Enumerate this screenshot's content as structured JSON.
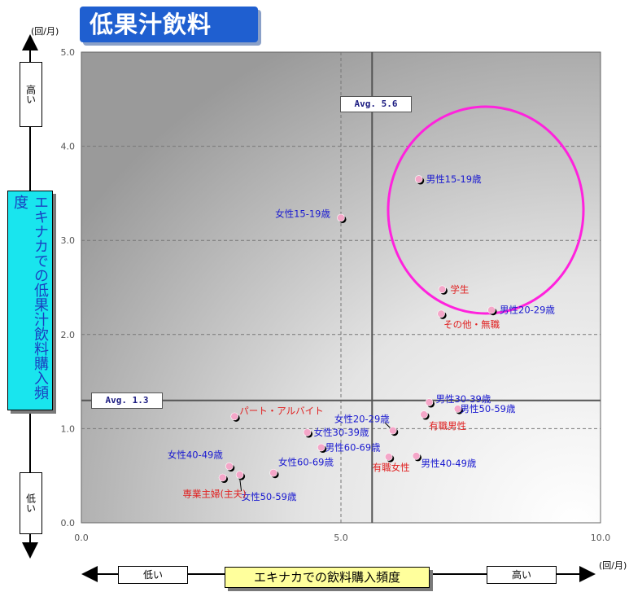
{
  "title": "低果汁飲料",
  "units": {
    "y": "(回/月)",
    "x": "(回/月)"
  },
  "y_axis": {
    "title": "エキナカでの低果汁飲料購入頻度",
    "high": "高い",
    "low": "低い"
  },
  "x_axis": {
    "title": "エキナカでの飲料購入頻度",
    "high": "高い",
    "low": "低い"
  },
  "avg": {
    "x_label": "Avg. 5.6",
    "y_label": "Avg. 1.3"
  },
  "colors": {
    "blue_label": "#1a1ad0",
    "red_label": "#e02020",
    "highlight_circle": "#ff22dd",
    "title_bg": "#1f5fd0"
  },
  "chart_data": {
    "type": "scatter",
    "xlim": [
      0,
      10
    ],
    "ylim": [
      0,
      5
    ],
    "x_ticks": [
      "0.0",
      "5.0",
      "10.0"
    ],
    "y_ticks": [
      "0.0",
      "1.0",
      "2.0",
      "3.0",
      "4.0",
      "5.0"
    ],
    "grid": true,
    "avg_x": 5.6,
    "avg_y": 1.3,
    "points": [
      {
        "label": "男性15-19歳",
        "x": 6.5,
        "y": 3.65,
        "color": "blue",
        "group": "gender_age"
      },
      {
        "label": "女性15-19歳",
        "x": 5.0,
        "y": 3.24,
        "color": "blue",
        "group": "gender_age"
      },
      {
        "label": "学生",
        "x": 6.95,
        "y": 2.48,
        "color": "red",
        "group": "occupation"
      },
      {
        "label": "男性20-29歳",
        "x": 7.9,
        "y": 2.26,
        "color": "blue",
        "group": "gender_age"
      },
      {
        "label": "その他・無職",
        "x": 6.93,
        "y": 2.22,
        "color": "red",
        "group": "occupation"
      },
      {
        "label": "男性30-39歳",
        "x": 6.7,
        "y": 1.28,
        "color": "blue",
        "group": "gender_age"
      },
      {
        "label": "男性50-59歳",
        "x": 7.25,
        "y": 1.21,
        "color": "blue",
        "group": "gender_age"
      },
      {
        "label": "有職男性",
        "x": 6.6,
        "y": 1.15,
        "color": "red",
        "group": "occupation"
      },
      {
        "label": "パート・アルバイト",
        "x": 2.95,
        "y": 1.13,
        "color": "red",
        "group": "occupation"
      },
      {
        "label": "女性20-29歳",
        "x": 6.0,
        "y": 0.98,
        "color": "blue",
        "group": "gender_age"
      },
      {
        "label": "女性30-39歳",
        "x": 4.35,
        "y": 0.96,
        "color": "blue",
        "group": "gender_age"
      },
      {
        "label": "男性60-69歳",
        "x": 4.62,
        "y": 0.8,
        "color": "blue",
        "group": "gender_age"
      },
      {
        "label": "有職女性",
        "x": 5.92,
        "y": 0.7,
        "color": "red",
        "group": "occupation"
      },
      {
        "label": "男性40-49歳",
        "x": 6.45,
        "y": 0.71,
        "color": "blue",
        "group": "gender_age"
      },
      {
        "label": "女性40-49歳",
        "x": 2.85,
        "y": 0.6,
        "color": "blue",
        "group": "gender_age"
      },
      {
        "label": "女性60-69歳",
        "x": 3.7,
        "y": 0.53,
        "color": "blue",
        "group": "gender_age"
      },
      {
        "label": "女性50-59歳",
        "x": 3.05,
        "y": 0.51,
        "color": "blue",
        "group": "gender_age"
      },
      {
        "label": "専業主婦(主夫)",
        "x": 2.72,
        "y": 0.48,
        "color": "red",
        "group": "occupation"
      }
    ]
  }
}
